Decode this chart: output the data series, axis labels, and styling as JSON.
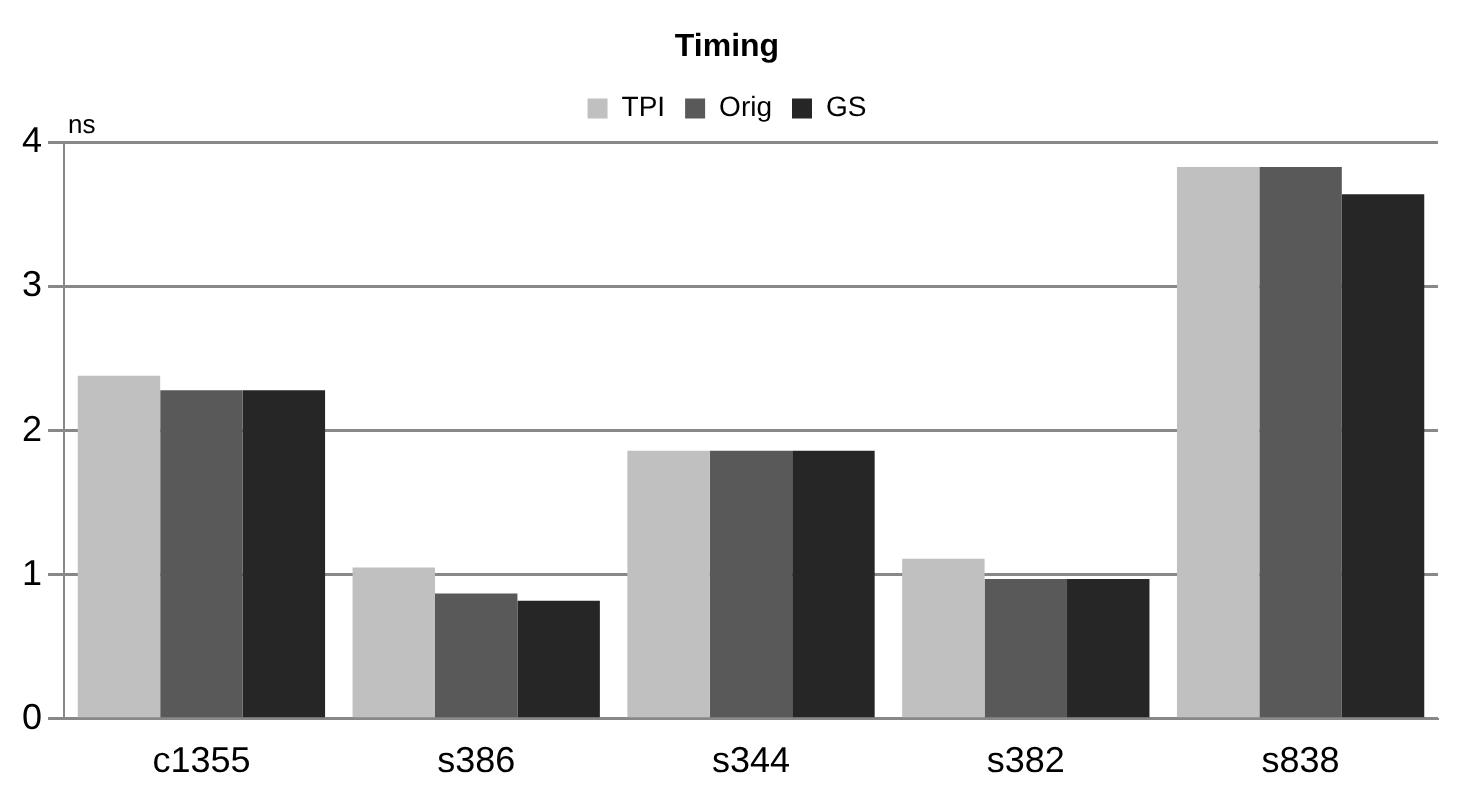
{
  "chart_data": {
    "type": "bar",
    "title": "Timing",
    "ylabel": "ns",
    "categories": [
      "c1355",
      "s386",
      "s344",
      "s382",
      "s838"
    ],
    "series": [
      {
        "name": "TPI",
        "color": "#c0c0c0",
        "values": [
          2.38,
          1.05,
          1.86,
          1.11,
          3.83
        ]
      },
      {
        "name": "Orig",
        "color": "#595959",
        "values": [
          2.28,
          0.87,
          1.86,
          0.97,
          3.83
        ]
      },
      {
        "name": "GS",
        "color": "#262626",
        "values": [
          2.28,
          0.82,
          1.86,
          0.97,
          3.64
        ]
      }
    ],
    "ylim": [
      0,
      4
    ],
    "yticks": [
      0,
      1,
      2,
      3,
      4
    ],
    "grid": "y",
    "legend": "top"
  }
}
